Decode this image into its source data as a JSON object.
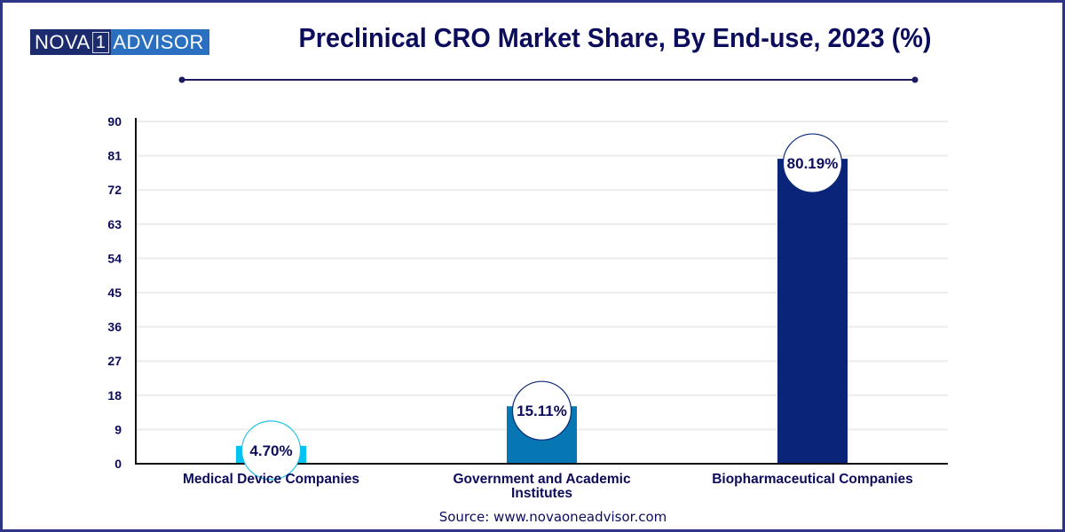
{
  "brand": {
    "logo_left": "NOVA",
    "logo_mid": "1",
    "logo_right": "ADVISOR"
  },
  "header": {
    "title": "Preclinical CRO Market Share, By End-use, 2023 (%)"
  },
  "footer": {
    "source": "Source: www.novaoneadvisor.com"
  },
  "colors": {
    "frame": "#2e3586",
    "title": "#0c0c5c",
    "bars": [
      "#00c3f3",
      "#0677b2",
      "#0a2479"
    ]
  },
  "chart_data": {
    "type": "bar",
    "title": "Preclinical CRO Market Share, By End-use, 2023 (%)",
    "xlabel": "",
    "ylabel": "",
    "categories": [
      [
        "Medical Device Companies"
      ],
      [
        "Government and Academic",
        "Institutes"
      ],
      [
        "Biopharmaceutical Companies"
      ]
    ],
    "category_names": [
      "Medical Device Companies",
      "Government and Academic Institutes",
      "Biopharmaceutical Companies"
    ],
    "values": [
      4.7,
      15.11,
      80.19
    ],
    "data_labels": [
      "4.70%",
      "15.11%",
      "80.19%"
    ],
    "ylim": [
      0,
      90
    ],
    "yticks": [
      0,
      9,
      18,
      27,
      36,
      45,
      54,
      63,
      72,
      81,
      90
    ],
    "grid": true,
    "legend": "none"
  }
}
